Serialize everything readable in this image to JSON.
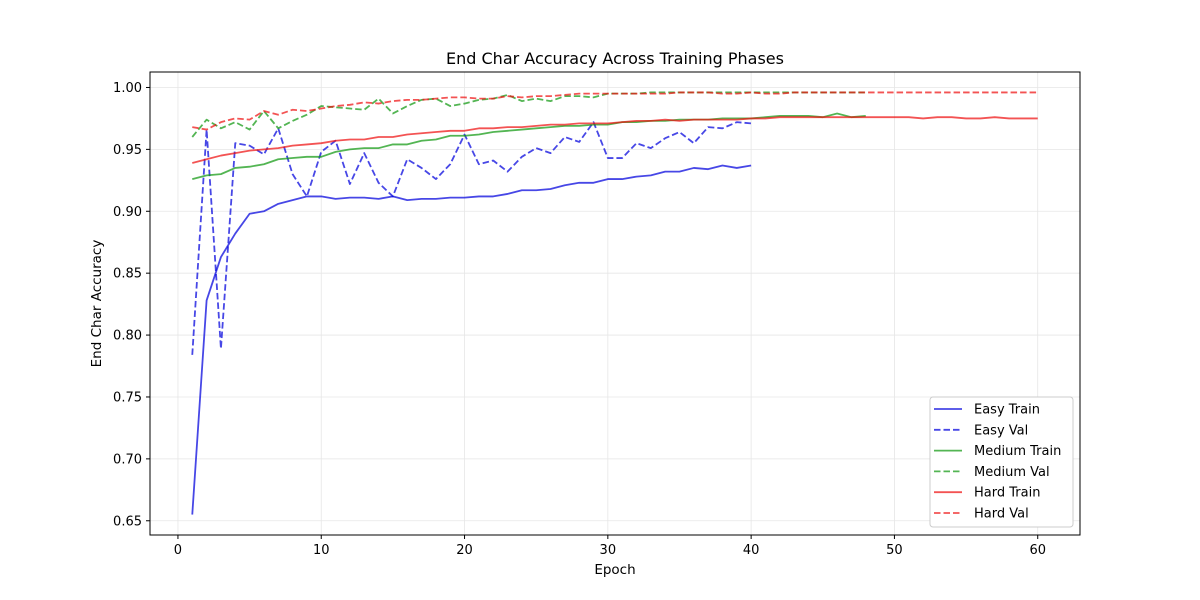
{
  "chart_data": {
    "type": "line",
    "title": "End Char Accuracy Across Training Phases",
    "xlabel": "Epoch",
    "ylabel": "End Char Accuracy",
    "xlim": [
      -1.95,
      62.95
    ],
    "ylim": [
      0.6385,
      1.0125
    ],
    "xticks": [
      0,
      10,
      20,
      30,
      40,
      50,
      60
    ],
    "yticks": [
      0.65,
      0.7,
      0.75,
      0.8,
      0.85,
      0.9,
      0.95,
      1.0
    ],
    "ytick_labels": [
      "0.65",
      "0.70",
      "0.75",
      "0.80",
      "0.85",
      "0.90",
      "0.95",
      "1.00"
    ],
    "grid": true,
    "legend_position": "lower-right",
    "series": [
      {
        "name": "Easy Train",
        "color": "#0000dd",
        "dash": false,
        "x": [
          1,
          2,
          3,
          4,
          5,
          6,
          7,
          8,
          9,
          10,
          11,
          12,
          13,
          14,
          15,
          16,
          17,
          18,
          19,
          20,
          21,
          22,
          23,
          24,
          25,
          26,
          27,
          28,
          29,
          30,
          31,
          32,
          33,
          34,
          35,
          36,
          37,
          38,
          39,
          40
        ],
        "y": [
          0.655,
          0.828,
          0.863,
          0.882,
          0.898,
          0.9,
          0.906,
          0.909,
          0.912,
          0.912,
          0.91,
          0.911,
          0.911,
          0.91,
          0.912,
          0.909,
          0.91,
          0.91,
          0.911,
          0.911,
          0.912,
          0.912,
          0.914,
          0.917,
          0.917,
          0.918,
          0.921,
          0.923,
          0.923,
          0.926,
          0.926,
          0.928,
          0.929,
          0.932,
          0.932,
          0.935,
          0.934,
          0.937,
          0.935,
          0.937
        ]
      },
      {
        "name": "Easy Val",
        "color": "#0000dd",
        "dash": true,
        "x": [
          1,
          2,
          3,
          4,
          5,
          6,
          7,
          8,
          9,
          10,
          11,
          12,
          13,
          14,
          15,
          16,
          17,
          18,
          19,
          20,
          21,
          22,
          23,
          24,
          25,
          26,
          27,
          28,
          29,
          30,
          31,
          32,
          33,
          34,
          35,
          36,
          37,
          38,
          39,
          40
        ],
        "y": [
          0.784,
          0.966,
          0.789,
          0.955,
          0.953,
          0.946,
          0.967,
          0.93,
          0.912,
          0.948,
          0.957,
          0.922,
          0.947,
          0.923,
          0.912,
          0.942,
          0.935,
          0.926,
          0.938,
          0.962,
          0.938,
          0.941,
          0.932,
          0.944,
          0.951,
          0.947,
          0.96,
          0.956,
          0.972,
          0.943,
          0.943,
          0.955,
          0.951,
          0.959,
          0.964,
          0.955,
          0.968,
          0.967,
          0.972,
          0.971
        ]
      },
      {
        "name": "Medium Train",
        "color": "#119911",
        "dash": false,
        "x": [
          1,
          2,
          3,
          4,
          5,
          6,
          7,
          8,
          9,
          10,
          11,
          12,
          13,
          14,
          15,
          16,
          17,
          18,
          19,
          20,
          21,
          22,
          23,
          24,
          25,
          26,
          27,
          28,
          29,
          30,
          31,
          32,
          33,
          34,
          35,
          36,
          37,
          38,
          39,
          40,
          41,
          42,
          43,
          44,
          45,
          46,
          47,
          48
        ],
        "y": [
          0.926,
          0.929,
          0.93,
          0.935,
          0.936,
          0.938,
          0.942,
          0.943,
          0.944,
          0.944,
          0.948,
          0.95,
          0.951,
          0.951,
          0.954,
          0.954,
          0.957,
          0.958,
          0.961,
          0.961,
          0.962,
          0.964,
          0.965,
          0.966,
          0.967,
          0.968,
          0.969,
          0.969,
          0.97,
          0.97,
          0.972,
          0.972,
          0.973,
          0.973,
          0.974,
          0.974,
          0.974,
          0.975,
          0.975,
          0.975,
          0.976,
          0.977,
          0.977,
          0.977,
          0.976,
          0.979,
          0.976,
          0.977
        ]
      },
      {
        "name": "Medium Val",
        "color": "#119911",
        "dash": true,
        "x": [
          1,
          2,
          3,
          4,
          5,
          6,
          7,
          8,
          9,
          10,
          11,
          12,
          13,
          14,
          15,
          16,
          17,
          18,
          19,
          20,
          21,
          22,
          23,
          24,
          25,
          26,
          27,
          28,
          29,
          30,
          31,
          32,
          33,
          34,
          35,
          36,
          37,
          38,
          39,
          40,
          41,
          42,
          43,
          44,
          45,
          46,
          47,
          48
        ],
        "y": [
          0.96,
          0.974,
          0.967,
          0.972,
          0.966,
          0.981,
          0.967,
          0.973,
          0.978,
          0.985,
          0.984,
          0.983,
          0.982,
          0.991,
          0.979,
          0.985,
          0.99,
          0.991,
          0.985,
          0.987,
          0.99,
          0.991,
          0.994,
          0.989,
          0.991,
          0.989,
          0.993,
          0.993,
          0.992,
          0.995,
          0.995,
          0.995,
          0.996,
          0.996,
          0.996,
          0.996,
          0.996,
          0.996,
          0.996,
          0.996,
          0.996,
          0.996,
          0.996,
          0.996,
          0.996,
          0.996,
          0.996,
          0.996
        ]
      },
      {
        "name": "Hard Train",
        "color": "#ee1111",
        "dash": false,
        "x": [
          1,
          2,
          3,
          4,
          5,
          6,
          7,
          8,
          9,
          10,
          11,
          12,
          13,
          14,
          15,
          16,
          17,
          18,
          19,
          20,
          21,
          22,
          23,
          24,
          25,
          26,
          27,
          28,
          29,
          30,
          31,
          32,
          33,
          34,
          35,
          36,
          37,
          38,
          39,
          40,
          41,
          42,
          43,
          44,
          45,
          46,
          47,
          48,
          49,
          50,
          51,
          52,
          53,
          54,
          55,
          56,
          57,
          58,
          59,
          60
        ],
        "y": [
          0.939,
          0.942,
          0.945,
          0.947,
          0.949,
          0.95,
          0.951,
          0.953,
          0.954,
          0.955,
          0.957,
          0.958,
          0.958,
          0.96,
          0.96,
          0.962,
          0.963,
          0.964,
          0.965,
          0.965,
          0.967,
          0.967,
          0.968,
          0.968,
          0.969,
          0.97,
          0.97,
          0.971,
          0.971,
          0.971,
          0.972,
          0.973,
          0.973,
          0.974,
          0.973,
          0.974,
          0.974,
          0.974,
          0.974,
          0.975,
          0.975,
          0.976,
          0.976,
          0.976,
          0.976,
          0.976,
          0.976,
          0.976,
          0.976,
          0.976,
          0.976,
          0.975,
          0.976,
          0.976,
          0.975,
          0.975,
          0.976,
          0.975,
          0.975,
          0.975
        ]
      },
      {
        "name": "Hard Val",
        "color": "#ee1111",
        "dash": true,
        "x": [
          1,
          2,
          3,
          4,
          5,
          6,
          7,
          8,
          9,
          10,
          11,
          12,
          13,
          14,
          15,
          16,
          17,
          18,
          19,
          20,
          21,
          22,
          23,
          24,
          25,
          26,
          27,
          28,
          29,
          30,
          31,
          32,
          33,
          34,
          35,
          36,
          37,
          38,
          39,
          40,
          41,
          42,
          43,
          44,
          45,
          46,
          47,
          48,
          49,
          50,
          51,
          52,
          53,
          54,
          55,
          56,
          57,
          58,
          59,
          60
        ],
        "y": [
          0.968,
          0.966,
          0.972,
          0.975,
          0.974,
          0.981,
          0.978,
          0.982,
          0.981,
          0.983,
          0.985,
          0.986,
          0.988,
          0.987,
          0.989,
          0.99,
          0.99,
          0.991,
          0.992,
          0.992,
          0.991,
          0.991,
          0.993,
          0.992,
          0.993,
          0.993,
          0.994,
          0.995,
          0.995,
          0.995,
          0.995,
          0.995,
          0.995,
          0.995,
          0.996,
          0.996,
          0.996,
          0.995,
          0.995,
          0.996,
          0.995,
          0.995,
          0.996,
          0.996,
          0.996,
          0.996,
          0.996,
          0.996,
          0.996,
          0.996,
          0.996,
          0.996,
          0.996,
          0.996,
          0.996,
          0.996,
          0.996,
          0.996,
          0.996,
          0.996
        ]
      }
    ]
  }
}
